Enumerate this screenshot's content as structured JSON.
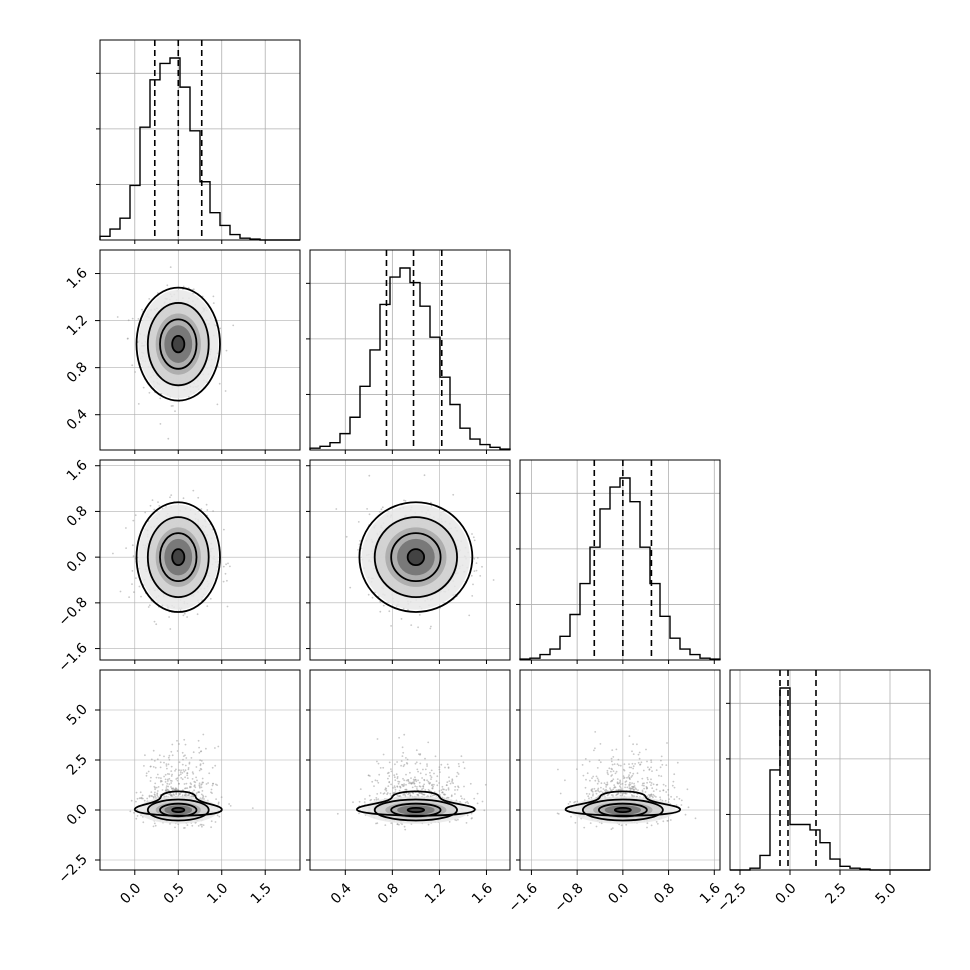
{
  "chart_data": {
    "type": "corner",
    "title": "",
    "colors": {
      "hist": "#000000",
      "grid": "#b0b0b0",
      "points": "#9a9a9a",
      "contour": "#000000"
    },
    "grid": true,
    "parameters": [
      {
        "name": "",
        "range": [
          -0.4,
          1.9
        ],
        "ticks": [
          0.0,
          0.5,
          1.0,
          1.5
        ],
        "tick_labels": [
          "0.0",
          "0.5",
          "1.0",
          "1.5"
        ],
        "mean": 0.5,
        "sd": 0.2,
        "quantiles": [
          0.23,
          0.5,
          0.77
        ]
      },
      {
        "name": "",
        "range": [
          0.1,
          1.8
        ],
        "ticks": [
          0.4,
          0.8,
          1.2,
          1.6
        ],
        "tick_labels": [
          "0.4",
          "0.8",
          "1.2",
          "1.6"
        ],
        "mean": 1.0,
        "sd": 0.2,
        "quantiles": [
          0.75,
          0.98,
          1.22
        ]
      },
      {
        "name": "",
        "range": [
          -1.8,
          1.7
        ],
        "ticks": [
          -1.6,
          -0.8,
          0.0,
          0.8,
          1.6
        ],
        "tick_labels": [
          "−1.6",
          "−0.8",
          "0.0",
          "0.8",
          "1.6"
        ],
        "mean": 0.0,
        "sd": 0.4,
        "quantiles": [
          -0.5,
          0.0,
          0.5
        ]
      },
      {
        "name": "",
        "range": [
          -3.0,
          7.0
        ],
        "ticks": [
          -2.5,
          0.0,
          2.5,
          5.0
        ],
        "tick_labels": [
          "−2.5",
          "0.0",
          "2.5",
          "5.0"
        ],
        "mean": 0.2,
        "sd": 1.0,
        "quantiles": [
          -0.5,
          -0.1,
          1.3
        ]
      }
    ],
    "histograms": [
      {
        "param": 0,
        "bin_edges": [
          -0.4,
          -0.285,
          -0.17,
          -0.055,
          0.06,
          0.175,
          0.29,
          0.405,
          0.52,
          0.635,
          0.75,
          0.865,
          0.98,
          1.095,
          1.21,
          1.325,
          1.44,
          1.555,
          1.67,
          1.785,
          1.9
        ],
        "counts": [
          0.02,
          0.06,
          0.12,
          0.3,
          0.62,
          0.88,
          0.97,
          1.0,
          0.84,
          0.6,
          0.32,
          0.15,
          0.08,
          0.03,
          0.01,
          0.005,
          0,
          0,
          0,
          0
        ]
      },
      {
        "param": 1,
        "bin_edges": [
          0.1,
          0.185,
          0.27,
          0.355,
          0.44,
          0.525,
          0.61,
          0.695,
          0.78,
          0.865,
          0.95,
          1.035,
          1.12,
          1.205,
          1.29,
          1.375,
          1.46,
          1.545,
          1.63,
          1.715,
          1.8
        ],
        "counts": [
          0.01,
          0.02,
          0.04,
          0.09,
          0.18,
          0.35,
          0.55,
          0.8,
          0.95,
          1.0,
          0.92,
          0.79,
          0.62,
          0.4,
          0.25,
          0.12,
          0.06,
          0.03,
          0.015,
          0.005
        ]
      },
      {
        "param": 2,
        "bin_edges": [
          -1.8,
          -1.625,
          -1.45,
          -1.275,
          -1.1,
          -0.925,
          -0.75,
          -0.575,
          -0.4,
          -0.225,
          -0.05,
          0.125,
          0.3,
          0.475,
          0.65,
          0.825,
          1.0,
          1.175,
          1.35,
          1.525,
          1.7
        ],
        "counts": [
          0.005,
          0.01,
          0.03,
          0.06,
          0.13,
          0.25,
          0.42,
          0.62,
          0.83,
          0.95,
          1.0,
          0.87,
          0.62,
          0.42,
          0.24,
          0.12,
          0.06,
          0.03,
          0.01,
          0.005
        ]
      },
      {
        "param": 3,
        "bin_edges": [
          -3.0,
          -2.5,
          -2.0,
          -1.5,
          -1.0,
          -0.5,
          0.0,
          0.5,
          1.0,
          1.5,
          2.0,
          2.5,
          3.0,
          3.5,
          4.0,
          4.5,
          5.0,
          5.5,
          6.0,
          6.5,
          7.0
        ],
        "counts": [
          0,
          0,
          0.01,
          0.08,
          0.55,
          1.0,
          0.25,
          0.25,
          0.22,
          0.15,
          0.06,
          0.02,
          0.01,
          0.005,
          0,
          0,
          0,
          0,
          0,
          0
        ]
      }
    ],
    "pairs": [
      {
        "x": 0,
        "y": 1,
        "center": [
          0.5,
          1.0
        ],
        "spread": [
          0.2,
          0.2
        ]
      },
      {
        "x": 0,
        "y": 2,
        "center": [
          0.5,
          0.0
        ],
        "spread": [
          0.2,
          0.4
        ]
      },
      {
        "x": 1,
        "y": 2,
        "center": [
          1.0,
          0.0
        ],
        "spread": [
          0.2,
          0.4
        ]
      },
      {
        "x": 0,
        "y": 3,
        "center": [
          0.5,
          0.0
        ],
        "spread": [
          0.2,
          0.7
        ]
      },
      {
        "x": 1,
        "y": 3,
        "center": [
          1.0,
          0.0
        ],
        "spread": [
          0.2,
          0.7
        ]
      },
      {
        "x": 2,
        "y": 3,
        "center": [
          0.0,
          0.0
        ],
        "spread": [
          0.4,
          0.7
        ]
      }
    ]
  }
}
